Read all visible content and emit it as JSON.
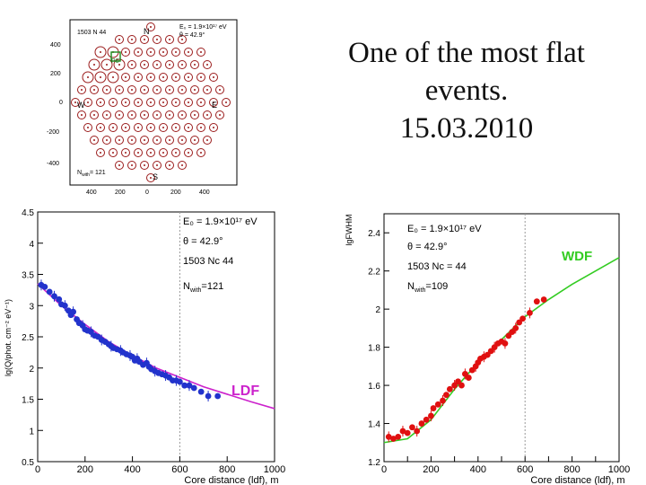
{
  "slide": {
    "title_lines": [
      "One of the most flat",
      "events.",
      "15.03.2010"
    ]
  },
  "colors": {
    "ldf_points": "#2233cc",
    "ldf_fit": "#cc22cc",
    "wdf_points": "#e01010",
    "wdf_fit": "#33cc22",
    "detector": "#9b1c1c",
    "axis": "#000000"
  },
  "chart_data": [
    {
      "type": "scatter",
      "name": "detector-map",
      "xlim": [
        -500,
        500
      ],
      "ylim": [
        -500,
        500
      ],
      "xticks": [
        "400",
        "200",
        "0",
        "200",
        "400"
      ],
      "yticks": [
        "400",
        "200",
        "0",
        "-200",
        "-400"
      ],
      "info": [
        "E₀ = 1.9×10¹⁷ eV",
        "θ = 42.9°",
        "1503 N 44"
      ],
      "compass": {
        "n": "N",
        "w": "W",
        "e": "E",
        "s": "S"
      },
      "n_label": "N",
      "n_sub": "with",
      "n_value": "= 121",
      "core_label": "P0"
    },
    {
      "type": "scatter",
      "name": "LDF",
      "label": "LDF",
      "xlabel": "Core distance (ldf), m",
      "ylabel": "lg(Q/phot. cm⁻² eV⁻¹)",
      "xlim": [
        0,
        1000
      ],
      "ylim": [
        0.5,
        4.5
      ],
      "xticks": [
        0,
        200,
        400,
        600,
        800,
        1000
      ],
      "xtick_labels": [
        "0",
        "200",
        "400",
        "600",
        "800",
        "1000"
      ],
      "yticks": [
        0.5,
        1,
        1.5,
        2,
        2.5,
        3,
        3.5,
        4,
        4.5
      ],
      "ytick_labels": [
        "0.5",
        "1",
        "1.5",
        "2",
        "2.5",
        "3",
        "3.5",
        "4",
        "4.5"
      ],
      "info": [
        "E₀ = 1.9×10¹⁷ eV",
        "θ = 42.9°",
        "1503 Nc 44"
      ],
      "n_label": "N",
      "n_sub": "with",
      "n_value": "=121",
      "fit": {
        "x": [
          0,
          100,
          200,
          300,
          400,
          500,
          600,
          700,
          800,
          900,
          1000
        ],
        "y": [
          3.35,
          3.0,
          2.7,
          2.42,
          2.2,
          2.0,
          1.85,
          1.7,
          1.58,
          1.46,
          1.35
        ]
      },
      "points": {
        "x": [
          15,
          30,
          50,
          70,
          90,
          100,
          115,
          130,
          140,
          150,
          165,
          175,
          190,
          200,
          210,
          225,
          240,
          255,
          270,
          285,
          300,
          310,
          320,
          335,
          350,
          360,
          375,
          390,
          400,
          410,
          420,
          430,
          445,
          460,
          470,
          480,
          495,
          510,
          525,
          540,
          555,
          570,
          585,
          600,
          620,
          640,
          660,
          690,
          720,
          760
        ],
        "y": [
          3.33,
          3.3,
          3.22,
          3.15,
          3.1,
          3.02,
          3.0,
          2.92,
          2.85,
          2.9,
          2.78,
          2.72,
          2.68,
          2.62,
          2.6,
          2.58,
          2.52,
          2.5,
          2.45,
          2.42,
          2.38,
          2.35,
          2.32,
          2.3,
          2.28,
          2.25,
          2.22,
          2.2,
          2.18,
          2.12,
          2.15,
          2.1,
          2.05,
          2.08,
          2.02,
          1.98,
          1.95,
          1.92,
          1.9,
          1.88,
          1.85,
          1.8,
          1.8,
          1.78,
          1.72,
          1.72,
          1.68,
          1.62,
          1.55,
          1.55
        ]
      }
    },
    {
      "type": "scatter",
      "name": "WDF",
      "label": "WDF",
      "xlabel": "Core distance (ldf), m",
      "ylabel": "lgFWHM",
      "xlim": [
        0,
        1000
      ],
      "ylim": [
        1.2,
        2.5
      ],
      "xticks": [
        0,
        100,
        200,
        300,
        400,
        500,
        600,
        700,
        800,
        900,
        1000
      ],
      "xtick_labels": [
        "0",
        "",
        "200",
        "",
        "400",
        "",
        "600",
        "",
        "800",
        "",
        "1000"
      ],
      "yticks": [
        1.2,
        1.4,
        1.6,
        1.8,
        2.0,
        2.2,
        2.4
      ],
      "ytick_labels": [
        "1.2",
        "1.4",
        "1.6",
        "1.8",
        "2",
        "2.2",
        "2.4"
      ],
      "info": [
        "E₀ = 1.9×10¹⁷ eV",
        "θ = 42.9°",
        "1503 Nc = 44"
      ],
      "n_label": "N",
      "n_sub": "with",
      "n_value": "=109",
      "fit": {
        "x": [
          0,
          100,
          200,
          250,
          300,
          400,
          500,
          600,
          700,
          800,
          900,
          1000
        ],
        "y": [
          1.3,
          1.32,
          1.42,
          1.5,
          1.58,
          1.72,
          1.84,
          1.96,
          2.05,
          2.13,
          2.2,
          2.27
        ]
      },
      "points": {
        "x": [
          20,
          40,
          60,
          80,
          100,
          120,
          140,
          160,
          180,
          200,
          210,
          230,
          250,
          265,
          280,
          300,
          315,
          330,
          345,
          360,
          375,
          390,
          400,
          410,
          425,
          440,
          455,
          470,
          485,
          500,
          515,
          530,
          545,
          560,
          575,
          590,
          620,
          650,
          680
        ],
        "y": [
          1.33,
          1.32,
          1.33,
          1.36,
          1.35,
          1.38,
          1.36,
          1.4,
          1.42,
          1.44,
          1.48,
          1.5,
          1.52,
          1.55,
          1.58,
          1.6,
          1.62,
          1.6,
          1.66,
          1.64,
          1.68,
          1.7,
          1.72,
          1.74,
          1.75,
          1.76,
          1.78,
          1.8,
          1.82,
          1.83,
          1.82,
          1.86,
          1.88,
          1.9,
          1.93,
          1.95,
          1.98,
          2.04,
          2.05
        ]
      }
    }
  ]
}
